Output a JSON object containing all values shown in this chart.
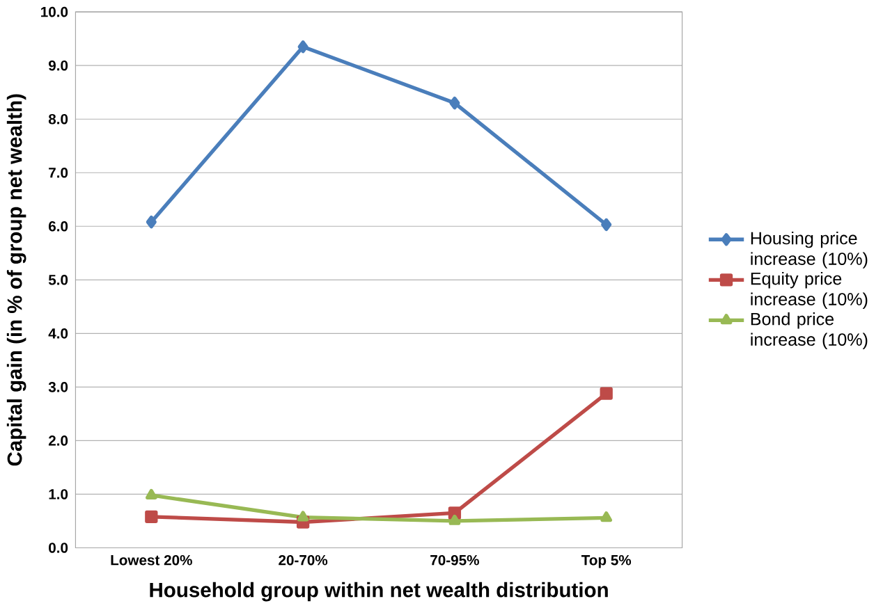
{
  "chart_data": {
    "type": "line",
    "xlabel": "Household group within net wealth distribution",
    "ylabel": "Capital gain (in % of group net wealth)",
    "categories": [
      "Lowest 20%",
      "20-70%",
      "70-95%",
      "Top 5%"
    ],
    "series": [
      {
        "name": "Housing price increase (10%)",
        "color": "#4a7ebb",
        "marker": "diamond",
        "values": [
          6.08,
          9.35,
          8.3,
          6.03
        ]
      },
      {
        "name": "Equity price increase (10%)",
        "color": "#be4b48",
        "marker": "square",
        "values": [
          0.58,
          0.48,
          0.65,
          2.88
        ]
      },
      {
        "name": "Bond price increase (10%)",
        "color": "#98b954",
        "marker": "triangle",
        "values": [
          0.98,
          0.57,
          0.5,
          0.56
        ]
      }
    ],
    "ylim": [
      0,
      10
    ],
    "yticks": [
      {
        "value": 0,
        "label": "0.0"
      },
      {
        "value": 1,
        "label": "1.0"
      },
      {
        "value": 2,
        "label": "2.0"
      },
      {
        "value": 3,
        "label": "3.0"
      },
      {
        "value": 4,
        "label": "4.0"
      },
      {
        "value": 5,
        "label": "5.0"
      },
      {
        "value": 6,
        "label": "6.0"
      },
      {
        "value": 7,
        "label": "7.0"
      },
      {
        "value": 8,
        "label": "8.0"
      },
      {
        "value": 9,
        "label": "9.0"
      },
      {
        "value": 10,
        "label": "10.0"
      }
    ],
    "grid": "y",
    "legend": "right",
    "line_style": "solid"
  }
}
